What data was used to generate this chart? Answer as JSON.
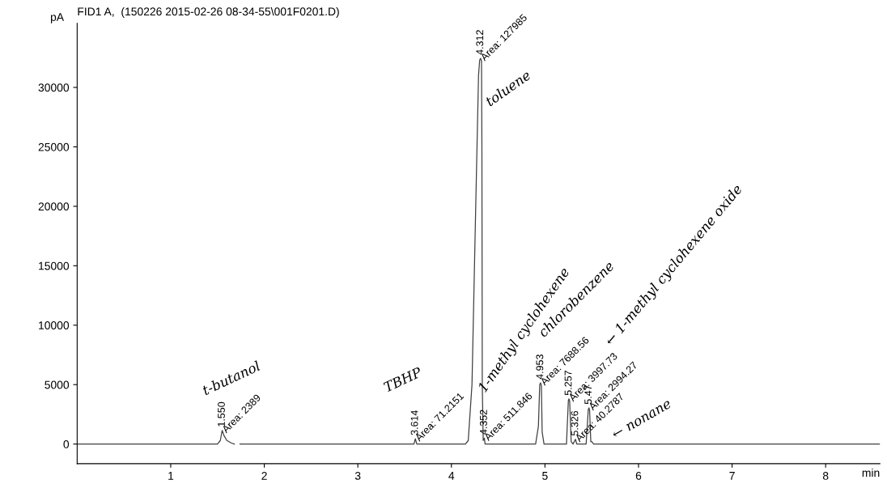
{
  "chart_data": {
    "type": "line",
    "title": "FID1 A,  (150226 2015-02-26 08-34-55\\001F0201.D)",
    "xlabel": "min",
    "ylabel": "pA",
    "xlim": [
      0,
      8.58
    ],
    "ylim": [
      -1650,
      35400
    ],
    "xticks": [
      1,
      2,
      3,
      4,
      5,
      6,
      7,
      8
    ],
    "yticks": [
      0,
      5000,
      10000,
      15000,
      20000,
      25000,
      30000
    ],
    "grid": false,
    "legend": false,
    "marker": "none",
    "line_style": "solid",
    "series": [
      {
        "color": "#404040",
        "x": [
          0,
          1.5,
          1.53,
          1.55,
          1.57,
          1.6,
          1.65,
          1.68,
          1.71,
          1.74,
          3.6,
          3.614,
          3.63,
          3.7,
          4.15,
          4.18,
          4.22,
          4.26,
          4.29,
          4.302,
          4.312,
          4.322,
          4.326,
          4.33,
          4.34,
          4.352,
          4.36,
          4.9,
          4.93,
          4.944,
          4.953,
          4.962,
          4.97,
          4.99,
          5.23,
          5.25,
          5.257,
          5.264,
          5.28,
          5.3,
          5.326,
          5.34,
          5.44,
          5.463,
          5.47,
          5.477,
          5.49,
          5.5,
          5.52,
          8.58
        ],
        "values": [
          0,
          0,
          300,
          1150,
          700,
          300,
          80,
          0,
          null,
          0,
          0,
          450,
          0,
          0,
          0,
          300,
          5000,
          20000,
          31000,
          32300,
          32450,
          32200,
          25000,
          5000,
          300,
          500,
          0,
          0,
          1500,
          5000,
          5150,
          4900,
          1000,
          0,
          0,
          3650,
          3800,
          3600,
          200,
          0,
          400,
          0,
          0,
          2900,
          3050,
          2850,
          200,
          200,
          0,
          0
        ]
      }
    ],
    "annotations": [
      {
        "text": "1.550",
        "x": 1.55,
        "y": 1150
      },
      {
        "text": "Area: 2389",
        "x": 1.55,
        "y": 1150
      },
      {
        "text": "3.614",
        "x": 3.614,
        "y": 450
      },
      {
        "text": "Area: 71.2151",
        "x": 3.614,
        "y": 450
      },
      {
        "text": "4.312",
        "x": 4.312,
        "y": 32450
      },
      {
        "text": "Area: 127985",
        "x": 4.312,
        "y": 32450
      },
      {
        "text": "4.352",
        "x": 4.352,
        "y": 500
      },
      {
        "text": "Area: 511.846",
        "x": 4.352,
        "y": 500
      },
      {
        "text": "4.953",
        "x": 4.953,
        "y": 5150
      },
      {
        "text": "Area: 7688.56",
        "x": 4.953,
        "y": 5150
      },
      {
        "text": "5.257",
        "x": 5.257,
        "y": 3800
      },
      {
        "text": "Area: 3997.73",
        "x": 5.257,
        "y": 3800
      },
      {
        "text": "5.326",
        "x": 5.326,
        "y": 400
      },
      {
        "text": "Area: 40.2787",
        "x": 5.326,
        "y": 400
      },
      {
        "text": "5.47",
        "x": 5.47,
        "y": 3050
      },
      {
        "text": "Area: 2994.27",
        "x": 5.47,
        "y": 3050
      },
      "t-butanol",
      "TBHP",
      "toluene",
      "1-methyl cyclohexene",
      "chlorobenzene",
      "← 1-methyl cyclohexene oxide",
      "← nonane"
    ]
  }
}
